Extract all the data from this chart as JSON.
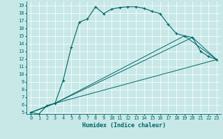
{
  "xlabel": "Humidex (Indice chaleur)",
  "bg_color": "#c8e8e8",
  "line_color": "#006666",
  "grid_color": "#ffffff",
  "xlim": [
    -0.5,
    23.5
  ],
  "ylim": [
    4.8,
    19.5
  ],
  "yticks": [
    5,
    6,
    7,
    8,
    9,
    10,
    11,
    12,
    13,
    14,
    15,
    16,
    17,
    18,
    19
  ],
  "xticks": [
    0,
    1,
    2,
    3,
    4,
    5,
    6,
    7,
    8,
    9,
    10,
    11,
    12,
    13,
    14,
    15,
    16,
    17,
    18,
    19,
    20,
    21,
    22,
    23
  ],
  "series": [
    {
      "x": [
        0,
        1,
        2,
        3,
        4,
        5,
        6,
        7,
        8,
        9,
        10,
        11,
        12,
        13,
        14,
        15,
        16,
        17,
        18,
        19,
        20,
        21,
        22,
        23
      ],
      "y": [
        5.0,
        4.8,
        5.9,
        6.2,
        9.2,
        13.5,
        16.8,
        17.2,
        18.8,
        17.9,
        18.5,
        18.7,
        18.8,
        18.8,
        18.6,
        18.2,
        17.9,
        16.5,
        15.3,
        15.0,
        14.8,
        13.0,
        12.3,
        11.9
      ],
      "marker": true
    },
    {
      "x": [
        0,
        3,
        23
      ],
      "y": [
        5.0,
        6.2,
        11.9
      ],
      "marker": false
    },
    {
      "x": [
        0,
        3,
        20,
        23
      ],
      "y": [
        5.0,
        6.2,
        14.8,
        11.9
      ],
      "marker": false
    },
    {
      "x": [
        0,
        3,
        19,
        23
      ],
      "y": [
        5.0,
        6.2,
        15.0,
        11.9
      ],
      "marker": false
    }
  ],
  "tick_fontsize": 5.0,
  "xlabel_fontsize": 6.0
}
